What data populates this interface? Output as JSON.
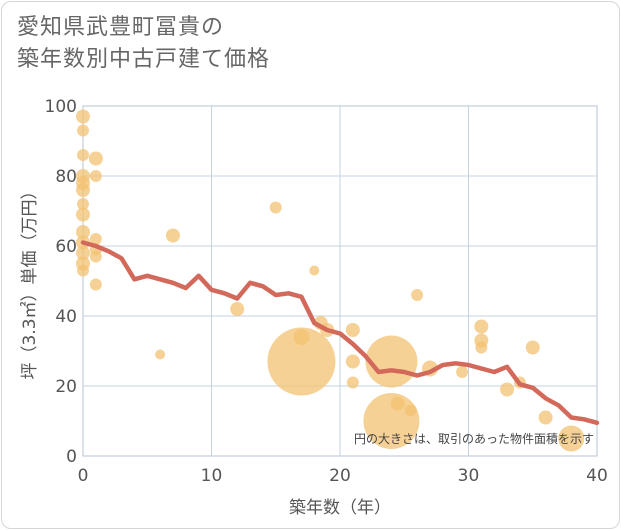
{
  "title_lines": [
    "愛知県武豊町冨貴の",
    "築年数別中古戸建て価格"
  ],
  "note": "円の大きさは、取引のあった物件面積を示す",
  "colors": {
    "bubble": "#f3c272",
    "line": "#d2695a",
    "grid": "#c5d3e0",
    "plot_border": "#b4c3d1"
  },
  "chart_data": {
    "type": "scatter",
    "xlabel": "築年数（年）",
    "ylabel": "坪（3.3㎡）単価（万円）",
    "xlim": [
      0,
      40
    ],
    "ylim": [
      0,
      100
    ],
    "xticks": [
      0,
      10,
      20,
      30,
      40
    ],
    "yticks": [
      0,
      20,
      40,
      60,
      80,
      100
    ],
    "grid": true,
    "bubbles": [
      {
        "x": 0,
        "y": 97,
        "r": 7
      },
      {
        "x": 0,
        "y": 93,
        "r": 6
      },
      {
        "x": 0,
        "y": 86,
        "r": 6
      },
      {
        "x": 0,
        "y": 80,
        "r": 7
      },
      {
        "x": 0,
        "y": 78,
        "r": 7
      },
      {
        "x": 0,
        "y": 76,
        "r": 7
      },
      {
        "x": 0,
        "y": 72,
        "r": 6
      },
      {
        "x": 0,
        "y": 69,
        "r": 7
      },
      {
        "x": 0,
        "y": 64,
        "r": 7
      },
      {
        "x": 0,
        "y": 61,
        "r": 7
      },
      {
        "x": 0,
        "y": 58,
        "r": 7
      },
      {
        "x": 0,
        "y": 55,
        "r": 7
      },
      {
        "x": 0,
        "y": 53,
        "r": 6
      },
      {
        "x": 1,
        "y": 85,
        "r": 7
      },
      {
        "x": 1,
        "y": 80,
        "r": 6
      },
      {
        "x": 1,
        "y": 62,
        "r": 6
      },
      {
        "x": 1,
        "y": 59,
        "r": 6
      },
      {
        "x": 1,
        "y": 57,
        "r": 6
      },
      {
        "x": 1,
        "y": 49,
        "r": 6
      },
      {
        "x": 6,
        "y": 29,
        "r": 5
      },
      {
        "x": 7,
        "y": 63,
        "r": 7
      },
      {
        "x": 12,
        "y": 42,
        "r": 7
      },
      {
        "x": 15,
        "y": 71,
        "r": 6
      },
      {
        "x": 17,
        "y": 27,
        "r": 34
      },
      {
        "x": 17,
        "y": 34,
        "r": 8
      },
      {
        "x": 18,
        "y": 53,
        "r": 5
      },
      {
        "x": 18.5,
        "y": 38,
        "r": 7
      },
      {
        "x": 19,
        "y": 36,
        "r": 7
      },
      {
        "x": 21,
        "y": 36,
        "r": 7
      },
      {
        "x": 21,
        "y": 27,
        "r": 7
      },
      {
        "x": 21,
        "y": 21,
        "r": 6
      },
      {
        "x": 24,
        "y": 27,
        "r": 26
      },
      {
        "x": 24,
        "y": 10,
        "r": 28
      },
      {
        "x": 24.5,
        "y": 15,
        "r": 7
      },
      {
        "x": 25.5,
        "y": 13,
        "r": 6
      },
      {
        "x": 26,
        "y": 46,
        "r": 6
      },
      {
        "x": 27,
        "y": 25,
        "r": 8
      },
      {
        "x": 29.5,
        "y": 24,
        "r": 6
      },
      {
        "x": 31,
        "y": 37,
        "r": 7
      },
      {
        "x": 31,
        "y": 33,
        "r": 7
      },
      {
        "x": 31,
        "y": 31,
        "r": 6
      },
      {
        "x": 33,
        "y": 19,
        "r": 7
      },
      {
        "x": 34,
        "y": 21,
        "r": 6
      },
      {
        "x": 35,
        "y": 31,
        "r": 7
      },
      {
        "x": 36,
        "y": 11,
        "r": 7
      },
      {
        "x": 38,
        "y": 5,
        "r": 13
      }
    ],
    "trend": {
      "x": [
        0,
        1,
        2,
        3,
        4,
        5,
        6,
        7,
        8,
        9,
        10,
        11,
        12,
        13,
        14,
        15,
        16,
        17,
        18,
        19,
        20,
        21,
        22,
        23,
        24,
        25,
        26,
        27,
        28,
        29,
        30,
        31,
        32,
        33,
        34,
        35,
        36,
        37,
        38,
        39,
        40
      ],
      "y": [
        61,
        60,
        58.5,
        56.5,
        50.5,
        51.5,
        50.5,
        49.5,
        48,
        51.5,
        47.5,
        46.5,
        45,
        49.5,
        48.5,
        46,
        46.5,
        45.5,
        38,
        36,
        35,
        32,
        28.5,
        24,
        24.5,
        24,
        23,
        24,
        26,
        26.5,
        26,
        25,
        24,
        25.5,
        20.5,
        19.5,
        16.5,
        14.5,
        11,
        10.5,
        9.5
      ]
    }
  }
}
